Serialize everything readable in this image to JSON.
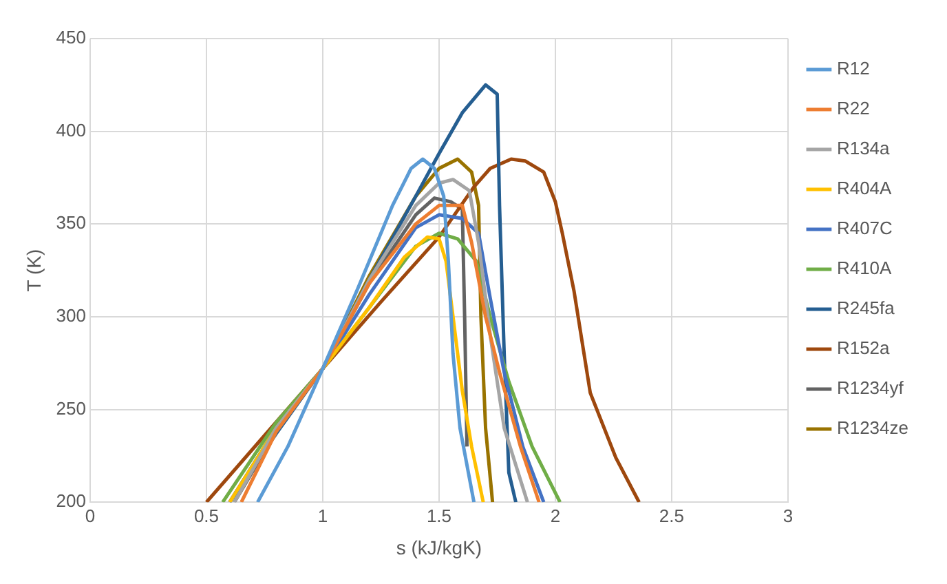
{
  "chart_data": {
    "type": "line",
    "xlabel": "s (kJ/kgK)",
    "ylabel": "T (K)",
    "xlim": [
      0,
      3
    ],
    "xticks": [
      0,
      0.5,
      1,
      1.5,
      2,
      2.5,
      3
    ],
    "ylim": [
      200,
      450
    ],
    "yticks": [
      200,
      250,
      300,
      350,
      400,
      450
    ],
    "grid": true,
    "legend": "right",
    "marker": "none",
    "line_style": "solid",
    "series": [
      {
        "name": "R12",
        "color": "#5b9bd5",
        "x": [
          0.72,
          0.85,
          1,
          1.15,
          1.3,
          1.38,
          1.43,
          1.48,
          1.52,
          1.54,
          1.56,
          1.59,
          1.65
        ],
        "values": [
          200,
          230,
          272,
          315,
          360,
          380,
          385,
          380,
          365,
          330,
          280,
          240,
          200
        ]
      },
      {
        "name": "R22",
        "color": "#ed7d31",
        "x": [
          0.65,
          0.8,
          1,
          1.2,
          1.4,
          1.5,
          1.6,
          1.64,
          1.7,
          1.76,
          1.85,
          1.93
        ],
        "values": [
          200,
          238,
          272,
          318,
          350,
          360,
          360,
          340,
          300,
          270,
          230,
          200
        ]
      },
      {
        "name": "R134a",
        "color": "#a5a5a5",
        "x": [
          0.62,
          0.8,
          1,
          1.2,
          1.4,
          1.5,
          1.56,
          1.63,
          1.67,
          1.72,
          1.78,
          1.88
        ],
        "values": [
          200,
          240,
          272,
          320,
          360,
          372,
          374,
          368,
          340,
          290,
          240,
          200
        ]
      },
      {
        "name": "R404A",
        "color": "#ffc000",
        "x": [
          0.6,
          0.8,
          1,
          1.2,
          1.35,
          1.45,
          1.5,
          1.53,
          1.56,
          1.6,
          1.64,
          1.69
        ],
        "values": [
          200,
          240,
          272,
          305,
          332,
          343,
          342,
          330,
          300,
          260,
          230,
          200
        ]
      },
      {
        "name": "R407C",
        "color": "#4472c4",
        "x": [
          0.6,
          0.8,
          1,
          1.2,
          1.4,
          1.5,
          1.6,
          1.67,
          1.72,
          1.78,
          1.86,
          1.95
        ],
        "values": [
          200,
          240,
          272,
          312,
          348,
          355,
          353,
          345,
          310,
          270,
          230,
          200
        ]
      },
      {
        "name": "R410A",
        "color": "#70ad47",
        "x": [
          0.57,
          0.8,
          1,
          1.2,
          1.4,
          1.5,
          1.58,
          1.66,
          1.72,
          1.8,
          1.9,
          2.02
        ],
        "values": [
          200,
          243,
          272,
          305,
          338,
          345,
          342,
          330,
          300,
          265,
          230,
          200
        ]
      },
      {
        "name": "R245fa",
        "color": "#255e91",
        "x": [
          0.6,
          0.8,
          1,
          1.2,
          1.4,
          1.5,
          1.6,
          1.7,
          1.75,
          1.76,
          1.78,
          1.8,
          1.83
        ],
        "values": [
          200,
          237,
          272,
          320,
          365,
          388,
          410,
          425,
          420,
          360,
          280,
          216,
          200
        ]
      },
      {
        "name": "R152a",
        "color": "#9e480e",
        "x": [
          0.5,
          0.75,
          1,
          1.25,
          1.5,
          1.65,
          1.72,
          1.81,
          1.87,
          1.95,
          2,
          2.03,
          2.08,
          2.15,
          2.26,
          2.36
        ],
        "values": [
          200,
          236,
          272,
          308,
          343,
          370,
          380,
          385,
          384,
          378,
          362,
          345,
          314,
          259,
          224,
          200
        ]
      },
      {
        "name": "R1234yf",
        "color": "#636363",
        "x": [
          0.62,
          0.8,
          1,
          1.2,
          1.4,
          1.48,
          1.55,
          1.6,
          1.61,
          1.62
        ],
        "values": [
          200,
          238,
          272,
          318,
          355,
          364,
          362,
          358,
          300,
          230
        ]
      },
      {
        "name": "R1234ze",
        "color": "#997300",
        "x": [
          0.6,
          0.8,
          1,
          1.2,
          1.4,
          1.5,
          1.58,
          1.64,
          1.67,
          1.68,
          1.7,
          1.73
        ],
        "values": [
          200,
          240,
          272,
          322,
          365,
          380,
          385,
          378,
          360,
          300,
          240,
          200
        ]
      }
    ]
  }
}
